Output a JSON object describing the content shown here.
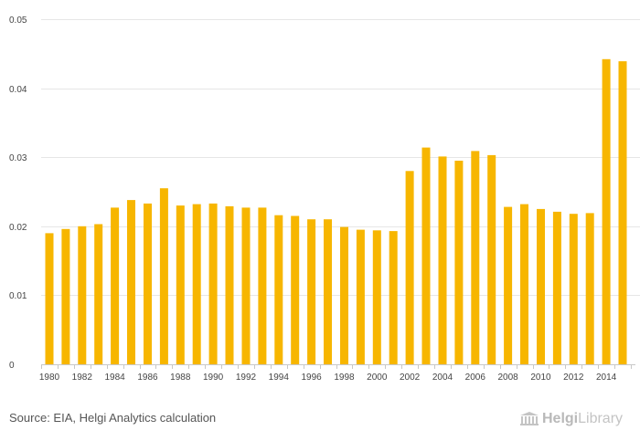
{
  "chart_data": {
    "type": "bar",
    "title": "",
    "xlabel": "",
    "ylabel": "",
    "ylim": [
      0,
      0.05
    ],
    "yticks": [
      "0",
      "0.01",
      "0.02",
      "0.03",
      "0.04",
      "0.05"
    ],
    "ytick_values": [
      0,
      0.01,
      0.02,
      0.03,
      0.04,
      0.05
    ],
    "categories": [
      "1980",
      "1981",
      "1982",
      "1983",
      "1984",
      "1985",
      "1986",
      "1987",
      "1988",
      "1989",
      "1990",
      "1991",
      "1992",
      "1993",
      "1994",
      "1995",
      "1996",
      "1997",
      "1998",
      "1999",
      "2000",
      "2001",
      "2002",
      "2003",
      "2004",
      "2005",
      "2006",
      "2007",
      "2008",
      "2009",
      "2010",
      "2011",
      "2012",
      "2013",
      "2014",
      "2015"
    ],
    "xtick_labels": [
      "1980",
      "1982",
      "1984",
      "1986",
      "1988",
      "1990",
      "1992",
      "1994",
      "1996",
      "1998",
      "2000",
      "2002",
      "2004",
      "2006",
      "2008",
      "2010",
      "2012",
      "2014"
    ],
    "values": [
      0.019,
      0.0196,
      0.02,
      0.0203,
      0.0227,
      0.0238,
      0.0233,
      0.0255,
      0.023,
      0.0232,
      0.0233,
      0.0229,
      0.0227,
      0.0227,
      0.0216,
      0.0215,
      0.021,
      0.021,
      0.0199,
      0.0195,
      0.0194,
      0.0193,
      0.028,
      0.0314,
      0.0301,
      0.0295,
      0.0309,
      0.0303,
      0.0228,
      0.0232,
      0.0225,
      0.0221,
      0.0218,
      0.0219,
      0.0442,
      0.0439
    ],
    "grid": true,
    "legend": "none",
    "bar_color": "#f7b600"
  },
  "footer": {
    "source": "Source: EIA, Helgi Analytics calculation",
    "logo_word_1": "Helgi",
    "logo_word_2": "Library",
    "logo_icon": "library-building-icon"
  }
}
